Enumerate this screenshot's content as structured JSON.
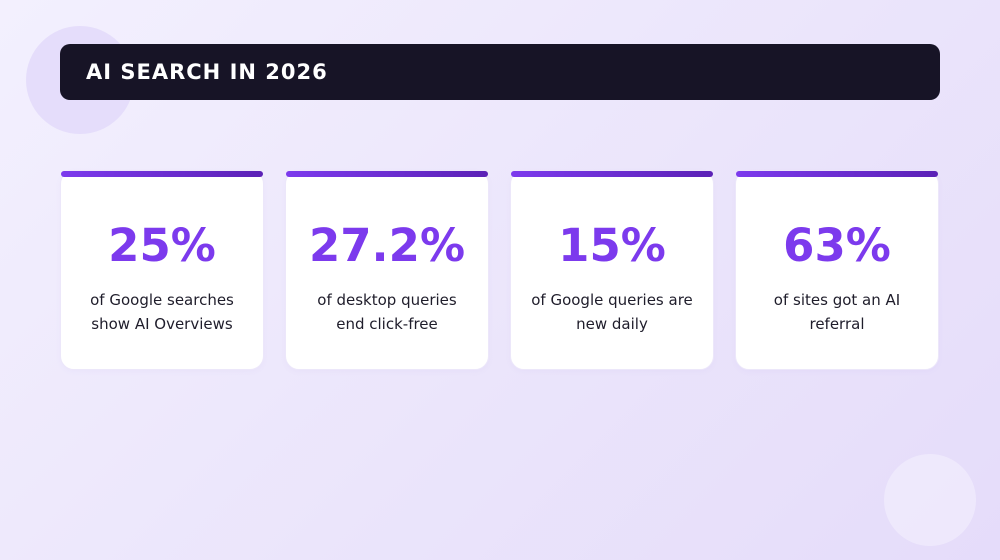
{
  "header": {
    "title": "AI SEARCH IN 2026"
  },
  "colors": {
    "accent": "#7c3aed",
    "accent_dark": "#5b21b6",
    "title_bar": "#171426",
    "text": "#1f1d2b"
  },
  "stats": [
    {
      "value": "25%",
      "label": "of Google searches show AI Overviews"
    },
    {
      "value": "27.2%",
      "label": "of desktop queries end click-free"
    },
    {
      "value": "15%",
      "label": "of Google queries are new daily"
    },
    {
      "value": "63%",
      "label": "of sites got an AI referral"
    }
  ]
}
